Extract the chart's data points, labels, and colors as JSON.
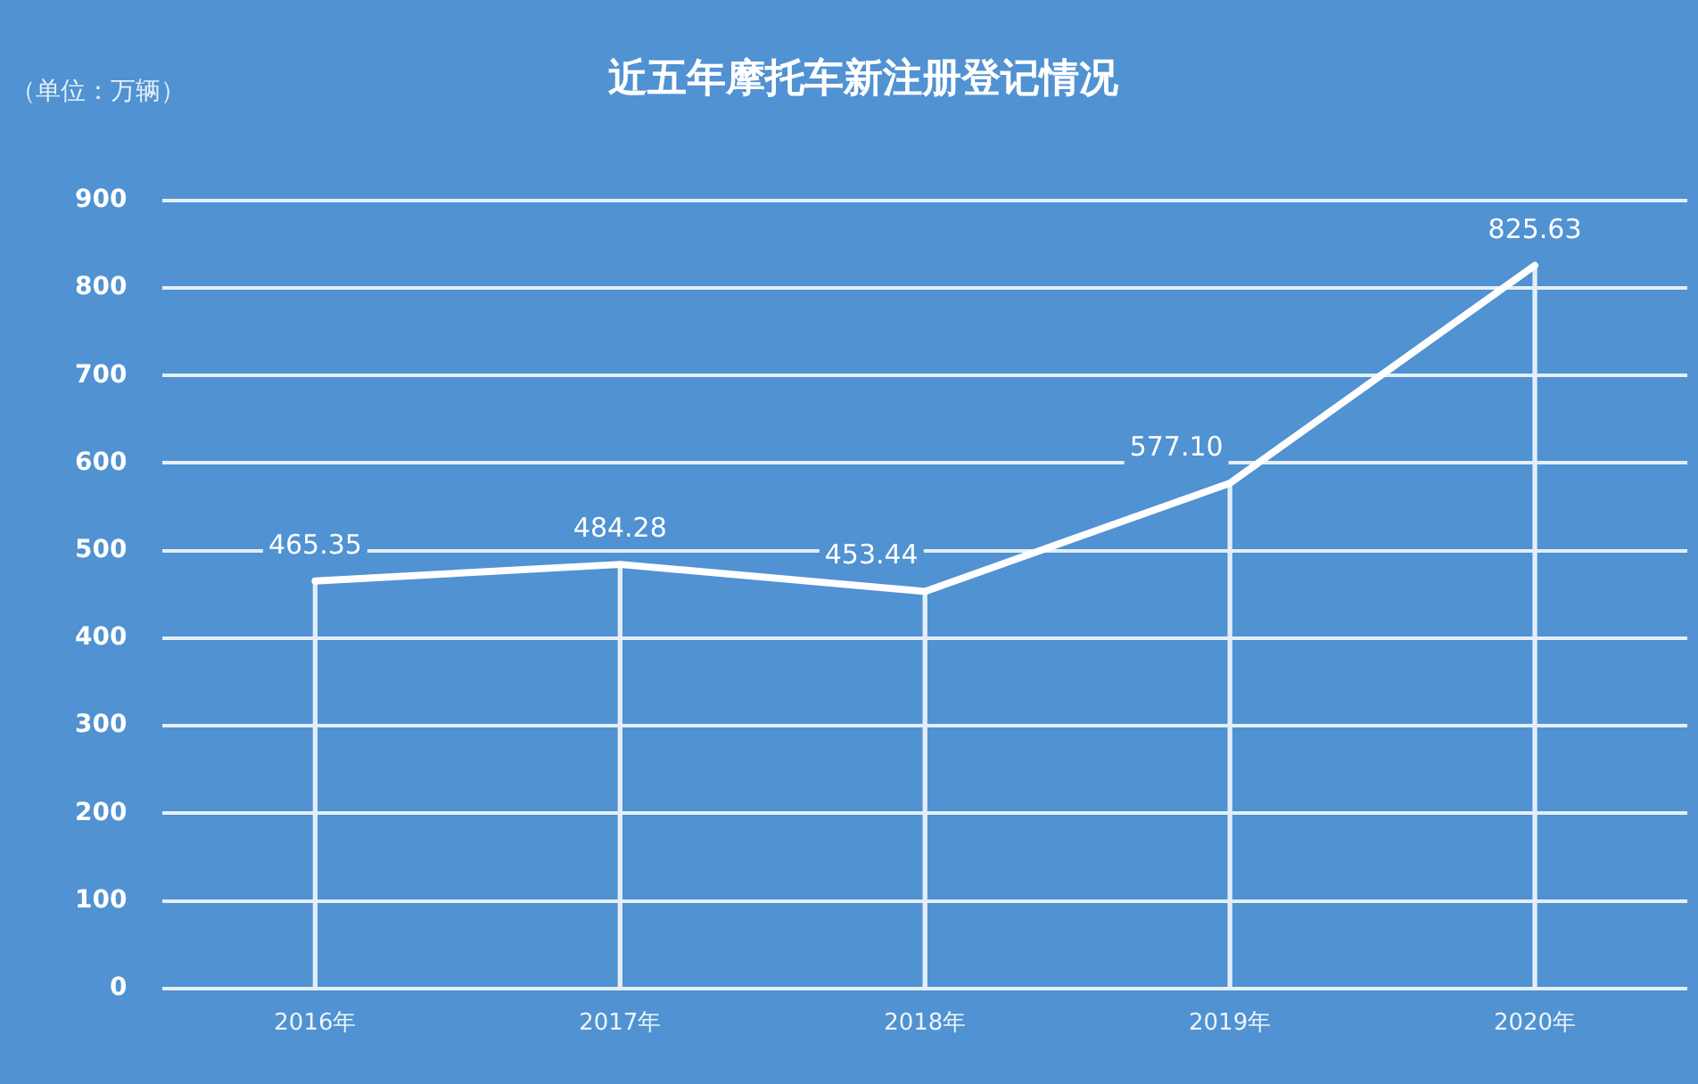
{
  "chart_data": {
    "type": "line",
    "title": "近五年摩托车新注册登记情况",
    "ylabel": "（单位：万辆）",
    "categories": [
      "2016年",
      "2017年",
      "2018年",
      "2019年",
      "2020年"
    ],
    "series": [
      {
        "type": "bar",
        "color": "#e4eef9",
        "values": [
          465.35,
          484.28,
          453.44,
          577.1,
          825.63
        ]
      },
      {
        "color": "#ffffff",
        "values": [
          465.35,
          484.28,
          453.44,
          577.1,
          825.63
        ],
        "value_labels": [
          "465.35",
          "484.28",
          "453.44",
          "577.10",
          "825.63"
        ]
      }
    ],
    "ylim": [
      0,
      900
    ],
    "yticks": [
      0,
      100,
      200,
      300,
      400,
      500,
      600,
      700,
      800,
      900
    ],
    "grid": "y",
    "legend": false,
    "marker": "none",
    "line_style": "solid"
  }
}
